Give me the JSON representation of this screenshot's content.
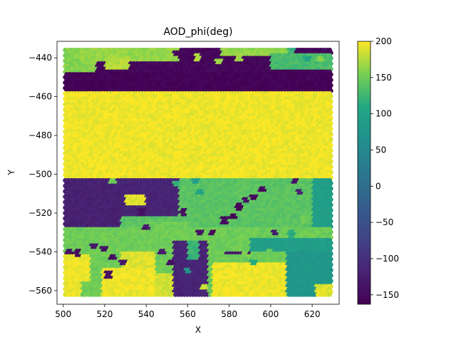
{
  "chart_data": {
    "type": "heatmap",
    "title": "AOD_phi(deg)",
    "xlabel": "X",
    "ylabel": "Y",
    "xlim": [
      497,
      633
    ],
    "ylim": [
      -567,
      -431.5
    ],
    "x_ticks": [
      500,
      520,
      540,
      560,
      580,
      600,
      620
    ],
    "y_ticks": [
      -440,
      -460,
      -480,
      -500,
      -520,
      -540,
      -560
    ],
    "grid": false,
    "colormap": "viridis",
    "colorbar": {
      "min": -163,
      "max": 200,
      "ticks": [
        200,
        150,
        100,
        50,
        0,
        -50,
        -100,
        -150
      ]
    },
    "regions": [
      {
        "x": [
          501,
          629
        ],
        "y": [
          -458,
          -448
        ],
        "value": -160
      },
      {
        "x": [
          501,
          629
        ],
        "y": [
          -448,
          -436
        ],
        "value": -155
      },
      {
        "x": [
          501,
          516
        ],
        "y": [
          -448,
          -436
        ],
        "value": 160
      },
      {
        "x": [
          508,
          556
        ],
        "y": [
          -442,
          -436
        ],
        "value": 165
      },
      {
        "x": [
          520,
          532
        ],
        "y": [
          -446,
          -440
        ],
        "value": 175
      },
      {
        "x": [
          576,
          612
        ],
        "y": [
          -440,
          -436
        ],
        "value": 165
      },
      {
        "x": [
          600,
          629
        ],
        "y": [
          -446,
          -438
        ],
        "value": 130
      },
      {
        "x": [
          501,
          629
        ],
        "y": [
          -502,
          -458
        ],
        "value": 195
      },
      {
        "x": [
          501,
          629
        ],
        "y": [
          -527,
          -502
        ],
        "value": 140
      },
      {
        "x": [
          501,
          528
        ],
        "y": [
          -527,
          -502
        ],
        "value": -120
      },
      {
        "x": [
          528,
          556
        ],
        "y": [
          -522,
          -502
        ],
        "value": -115
      },
      {
        "x": [
          530,
          540
        ],
        "y": [
          -517,
          -511
        ],
        "value": 190
      },
      {
        "x": [
          540,
          560
        ],
        "y": [
          -535,
          -525
        ],
        "value": 150
      },
      {
        "x": [
          620,
          629
        ],
        "y": [
          -527,
          -502
        ],
        "value": 90
      },
      {
        "x": [
          501,
          629
        ],
        "y": [
          -563,
          -527
        ],
        "value": 150
      },
      {
        "x": [
          501,
          513
        ],
        "y": [
          -563,
          -542
        ],
        "value": 195
      },
      {
        "x": [
          509,
          519
        ],
        "y": [
          -563,
          -555
        ],
        "value": 150
      },
      {
        "x": [
          519,
          545
        ],
        "y": [
          -563,
          -548
        ],
        "value": 195
      },
      {
        "x": [
          528,
          545
        ],
        "y": [
          -548,
          -540
        ],
        "value": 190
      },
      {
        "x": [
          545,
          560
        ],
        "y": [
          -563,
          -552
        ],
        "value": 185
      },
      {
        "x": [
          553,
          570
        ],
        "y": [
          -563,
          -535
        ],
        "value": -115
      },
      {
        "x": [
          560,
          566
        ],
        "y": [
          -545,
          -535
        ],
        "value": 120
      },
      {
        "x": [
          572,
          608
        ],
        "y": [
          -563,
          -546
        ],
        "value": 195
      },
      {
        "x": [
          608,
          629
        ],
        "y": [
          -563,
          -540
        ],
        "value": 75
      },
      {
        "x": [
          590,
          629
        ],
        "y": [
          -540,
          -533
        ],
        "value": 90
      },
      {
        "x": [
          622,
          629
        ],
        "y": [
          -563,
          -557
        ],
        "value": 190
      },
      {
        "x": [
          578,
          590
        ],
        "y": [
          -542,
          -540
        ],
        "value": -130
      }
    ],
    "hotspots": [
      {
        "x": 538,
        "y": -520,
        "value": -140
      },
      {
        "x": 540,
        "y": -528,
        "value": -130
      },
      {
        "x": 558,
        "y": -520,
        "value": -145
      },
      {
        "x": 566,
        "y": -530,
        "value": -140
      },
      {
        "x": 572,
        "y": -530,
        "value": -150
      },
      {
        "x": 578,
        "y": -524,
        "value": -150
      },
      {
        "x": 582,
        "y": -522,
        "value": -155
      },
      {
        "x": 585,
        "y": -517,
        "value": -160
      },
      {
        "x": 588,
        "y": -514,
        "value": -145
      },
      {
        "x": 592,
        "y": -512,
        "value": -150
      },
      {
        "x": 596,
        "y": -508,
        "value": -150
      },
      {
        "x": 503,
        "y": -540,
        "value": -140
      },
      {
        "x": 507,
        "y": -541,
        "value": -150
      },
      {
        "x": 515,
        "y": -537,
        "value": -130
      },
      {
        "x": 520,
        "y": -539,
        "value": -140
      },
      {
        "x": 524,
        "y": -543,
        "value": -145
      },
      {
        "x": 529,
        "y": -546,
        "value": -130
      },
      {
        "x": 522,
        "y": -552,
        "value": -140
      },
      {
        "x": 548,
        "y": -540,
        "value": -130
      },
      {
        "x": 552,
        "y": -546,
        "value": -140
      },
      {
        "x": 565,
        "y": -440,
        "value": 175
      },
      {
        "x": 575,
        "y": -442,
        "value": 170
      },
      {
        "x": 585,
        "y": -440,
        "value": 165
      },
      {
        "x": 555,
        "y": -438,
        "value": -150
      },
      {
        "x": 610,
        "y": -437,
        "value": 120
      },
      {
        "x": 618,
        "y": -441,
        "value": 100
      },
      {
        "x": 626,
        "y": -437,
        "value": -150
      },
      {
        "x": 624,
        "y": -441,
        "value": 160
      },
      {
        "x": 564,
        "y": -504,
        "value": 90
      },
      {
        "x": 566,
        "y": -509,
        "value": 100
      },
      {
        "x": 524,
        "y": -504,
        "value": 150
      },
      {
        "x": 555,
        "y": -505,
        "value": 120
      },
      {
        "x": 612,
        "y": -504,
        "value": -140
      },
      {
        "x": 614,
        "y": -509,
        "value": -120
      },
      {
        "x": 602,
        "y": -530,
        "value": -130
      },
      {
        "x": 610,
        "y": -531,
        "value": 110
      },
      {
        "x": 616,
        "y": -524,
        "value": 150
      },
      {
        "x": 600,
        "y": -541,
        "value": 150
      },
      {
        "x": 592,
        "y": -546,
        "value": 110
      },
      {
        "x": 568,
        "y": -558,
        "value": 180
      },
      {
        "x": 588,
        "y": -542,
        "value": 160
      },
      {
        "x": 560,
        "y": -550,
        "value": 80
      }
    ]
  }
}
